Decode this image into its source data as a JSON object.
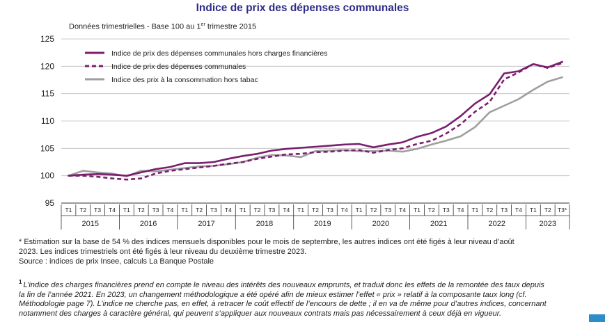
{
  "page": {
    "title": "Indice de prix des dépenses communales",
    "subtitle_main": "Données trimestrielles - Base 100 au 1",
    "subtitle_sup": "er",
    "subtitle_end": " trimestre 2015",
    "title_color": "#2e2e8c",
    "corner_color": "#2e8cc9"
  },
  "notes": {
    "line1": "* Estimation sur la base de 54 % des indices mensuels disponibles pour le mois de septembre, les autres indices ont été figés à leur niveau d’août",
    "line2": "2023. Les indices trimestriels ont été figés à leur niveau du deuxième trimestre 2023.",
    "line3": "Source : indices de prix Insee, calculs La Banque Postale"
  },
  "footnote": {
    "mark": "1",
    "line1": "L’indice des charges financières prend en compte le niveau des intérêts des nouveaux emprunts, et traduit donc les effets de la remontée des taux depuis",
    "line2": "la fin de l’année 2021. En 2023, un changement méthodologique a été opéré afin de mieux estimer l’effet « prix » relatif à la composante taux long (cf.",
    "line3": "Méthodologie page 7). L’indice ne cherche pas, en effet, à retracer le coût effectif de l’encours de dette ; il en va de même pour d’autres indices, concernant",
    "line4": "notamment des charges à caractère général, qui peuvent s’appliquer aux nouveaux contrats mais pas nécessairement à ceux déjà en vigueur."
  },
  "chart_data": {
    "type": "line",
    "ylim": [
      95,
      125
    ],
    "yticks": [
      95,
      100,
      105,
      110,
      115,
      120,
      125
    ],
    "grid": "horizontal",
    "legend_position": "top-left",
    "x": [
      "T1",
      "T2",
      "T3",
      "T4",
      "T1",
      "T2",
      "T3",
      "T4",
      "T1",
      "T2",
      "T3",
      "T4",
      "T1",
      "T2",
      "T3",
      "T4",
      "T1",
      "T2",
      "T3",
      "T4",
      "T1",
      "T2",
      "T3",
      "T4",
      "T1",
      "T2",
      "T3",
      "T4",
      "T1",
      "T2",
      "T3",
      "T4",
      "T1",
      "T2",
      "T3*"
    ],
    "years": [
      {
        "label": "2015",
        "count": 4
      },
      {
        "label": "2016",
        "count": 4
      },
      {
        "label": "2017",
        "count": 4
      },
      {
        "label": "2018",
        "count": 4
      },
      {
        "label": "2019",
        "count": 4
      },
      {
        "label": "2020",
        "count": 4
      },
      {
        "label": "2021",
        "count": 4
      },
      {
        "label": "2022",
        "count": 4
      },
      {
        "label": "2023",
        "count": 3
      }
    ],
    "series": [
      {
        "name": "Indice de prix des dépenses communales hors charges financières",
        "color": "#7a1e6e",
        "dash": "solid",
        "values": [
          100.0,
          100.2,
          100.3,
          100.2,
          100.0,
          100.6,
          101.2,
          101.6,
          102.3,
          102.3,
          102.5,
          103.1,
          103.6,
          104.0,
          104.6,
          104.9,
          105.1,
          105.3,
          105.5,
          105.7,
          105.8,
          105.2,
          105.7,
          106.1,
          107.1,
          107.8,
          109.0,
          110.9,
          113.2,
          114.9,
          118.7,
          119.1,
          120.4,
          119.8,
          120.8
        ]
      },
      {
        "name": "Indice de prix des dépenses communales",
        "color": "#7a1e6e",
        "dash": "dashed",
        "values": [
          100.0,
          100.0,
          99.8,
          99.5,
          99.3,
          99.5,
          100.4,
          100.9,
          101.2,
          101.5,
          101.8,
          102.2,
          102.5,
          103.1,
          103.5,
          103.9,
          104.0,
          104.3,
          104.4,
          104.6,
          104.7,
          104.2,
          104.7,
          105.0,
          105.8,
          106.4,
          107.7,
          109.4,
          111.7,
          113.5,
          117.6,
          118.9,
          120.4,
          119.7,
          120.6
        ]
      },
      {
        "name": "Indice des prix à la consommation hors tabac",
        "color": "#9e9e9e",
        "dash": "solid",
        "values": [
          100.0,
          100.9,
          100.6,
          100.4,
          99.9,
          100.9,
          100.8,
          101.1,
          101.4,
          101.7,
          101.8,
          102.1,
          102.5,
          103.3,
          103.8,
          103.7,
          103.4,
          104.5,
          104.6,
          104.7,
          104.5,
          104.5,
          104.6,
          104.4,
          104.9,
          105.7,
          106.4,
          107.2,
          108.9,
          111.6,
          112.8,
          114.0,
          115.7,
          117.2,
          118.0
        ]
      }
    ]
  }
}
